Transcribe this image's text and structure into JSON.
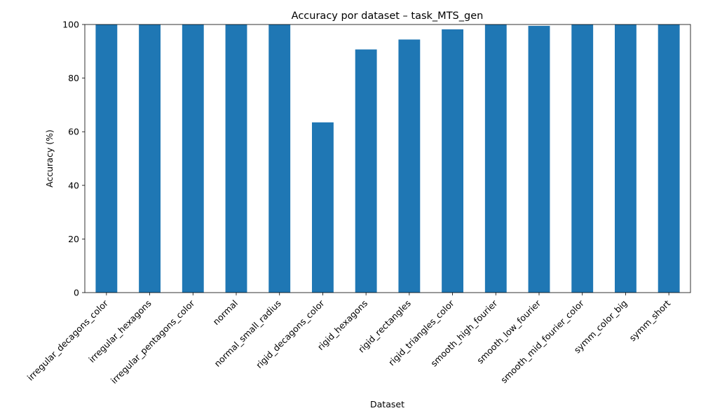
{
  "chart_data": {
    "type": "bar",
    "title": "Accuracy por dataset – task_MTS_gen",
    "xlabel": "Dataset",
    "ylabel": "Accuracy (%)",
    "ylim": [
      0,
      100
    ],
    "yticks": [
      0,
      20,
      40,
      60,
      80,
      100
    ],
    "grid": false,
    "legend": "none",
    "bar_color": "#1f77b4",
    "categories": [
      "irregular_decagons_color",
      "irregular_hexagons",
      "irregular_pentagons_color",
      "normal",
      "normal_small_radius",
      "rigid_decagons_color",
      "rigid_hexagons",
      "rigid_rectangles",
      "rigid_triangles_color",
      "smooth_high_fourier",
      "smooth_low_fourier",
      "smooth_mid_fourier_color",
      "symm_color_big",
      "symm_short"
    ],
    "values": [
      100,
      100,
      100,
      100,
      100,
      63.5,
      90.7,
      94.4,
      98.2,
      100,
      99.5,
      100,
      100,
      100
    ]
  }
}
